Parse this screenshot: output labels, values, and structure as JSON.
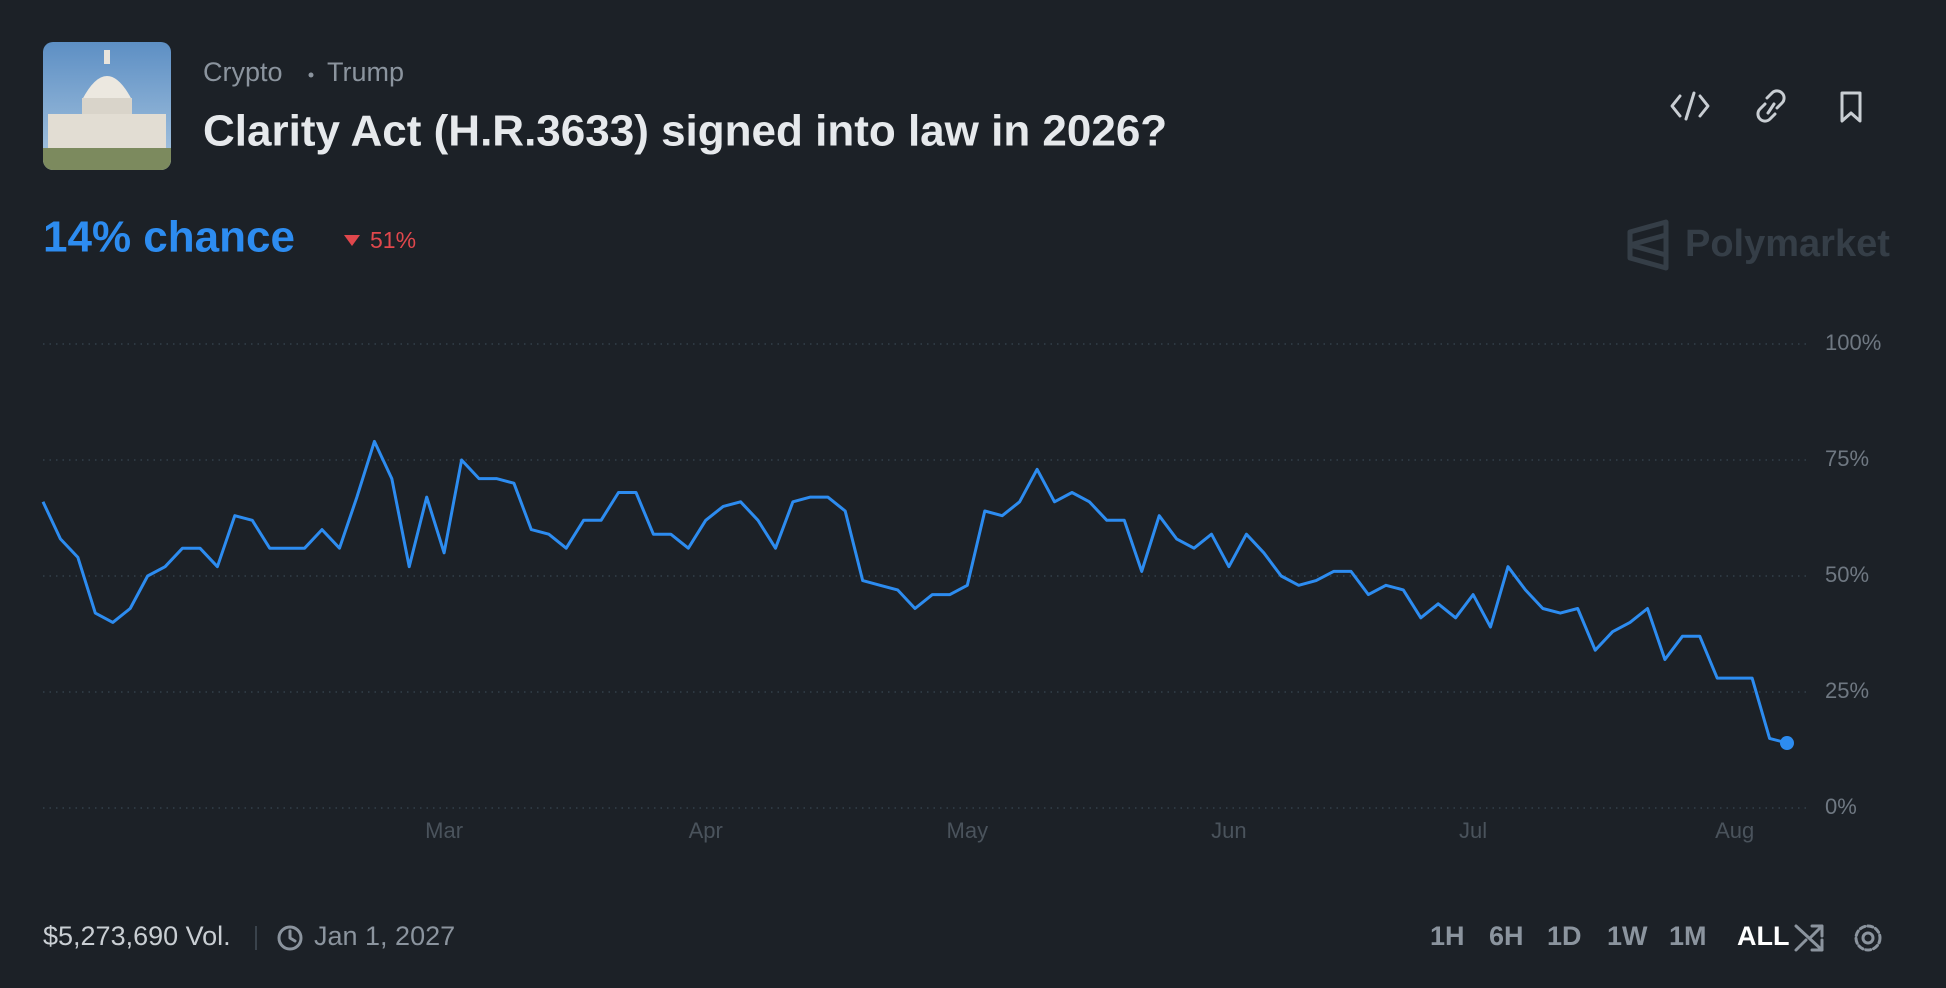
{
  "header": {
    "tags": [
      "Crypto",
      "Trump"
    ],
    "title": "Clarity Act (H.R.3633) signed into law in 2026?"
  },
  "headline": "14% chance",
  "change": "51%",
  "brand": "Polymarket",
  "chart_data": {
    "type": "line",
    "color": "#2d8cf0",
    "categories": [
      null,
      null,
      null,
      null,
      null,
      null,
      null,
      null,
      null,
      null,
      null,
      null,
      null,
      null,
      null,
      null,
      null,
      null,
      null,
      null,
      null,
      null,
      null,
      "Mar",
      null,
      null,
      null,
      null,
      null,
      null,
      null,
      null,
      null,
      null,
      null,
      null,
      null,
      null,
      "Apr",
      null,
      null,
      null,
      null,
      null,
      null,
      null,
      null,
      null,
      null,
      null,
      null,
      null,
      null,
      "May",
      null,
      null,
      null,
      null,
      null,
      null,
      null,
      null,
      null,
      null,
      null,
      null,
      null,
      null,
      "Jun",
      null,
      null,
      null,
      null,
      null,
      null,
      null,
      null,
      null,
      null,
      null,
      null,
      null,
      "Jul",
      null,
      null,
      null,
      null,
      null,
      null,
      null,
      null,
      null,
      null,
      null,
      null,
      null,
      null,
      "Aug",
      null,
      null,
      null
    ],
    "values": [
      66,
      58,
      54,
      42,
      40,
      43,
      50,
      52,
      56,
      56,
      52,
      63,
      62,
      56,
      56,
      56,
      60,
      56,
      67,
      79,
      71,
      52,
      67,
      55,
      75,
      71,
      71,
      70,
      60,
      59,
      56,
      62,
      62,
      68,
      68,
      59,
      59,
      56,
      62,
      65,
      66,
      62,
      56,
      66,
      67,
      67,
      64,
      49,
      48,
      47,
      43,
      46,
      46,
      48,
      64,
      63,
      66,
      73,
      66,
      68,
      66,
      62,
      62,
      51,
      63,
      58,
      56,
      59,
      52,
      59,
      55,
      50,
      48,
      49,
      51,
      51,
      46,
      48,
      47,
      41,
      44,
      41,
      46,
      39,
      52,
      47,
      43,
      42,
      43,
      34,
      38,
      40,
      43,
      32,
      37,
      37,
      28,
      28,
      28,
      15,
      14
    ],
    "ylim": [
      0,
      100
    ],
    "yticks": [
      {
        "value": 0,
        "label": "0%"
      },
      {
        "value": 25,
        "label": "25%"
      },
      {
        "value": 50,
        "label": "50%"
      },
      {
        "value": 75,
        "label": "75%"
      },
      {
        "value": 100,
        "label": "100%"
      }
    ],
    "grid": true
  },
  "footer": {
    "volume": "$5,273,690 Vol.",
    "end_date": "Jan 1, 2027",
    "ranges": [
      "1H",
      "6H",
      "1D",
      "1W",
      "1M",
      "ALL"
    ]
  }
}
